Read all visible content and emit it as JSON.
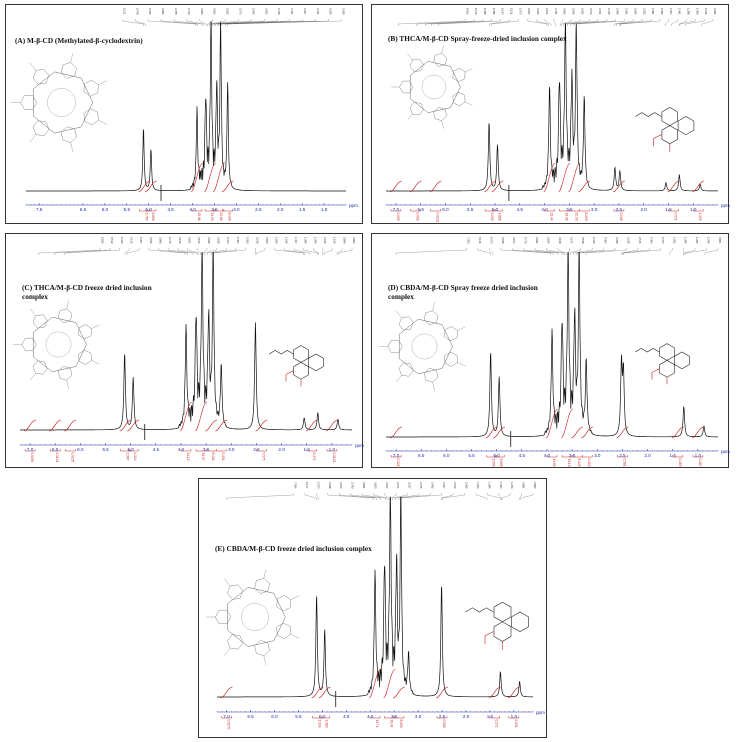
{
  "chart_data": [
    {
      "type": "line",
      "title": "(A) M-β-CD (Methylated-β-cyclodextrin)",
      "xlabel": "ppm",
      "x_ticks": [
        "7.5",
        "6.5",
        "6.0",
        "5.5",
        "5.0",
        "4.5",
        "4.0",
        "3.5",
        "3.0",
        "2.5",
        "2.0",
        "1.5",
        "1.0"
      ],
      "xlim": [
        0.5,
        7.8
      ],
      "structures": [
        "M-β-CD"
      ],
      "peak_list": [
        "5.121",
        "5.078",
        "3.925",
        "3.880",
        "3.785",
        "3.740",
        "3.684",
        "3.652",
        "3.622",
        "3.575",
        "3.540",
        "3.502",
        "3.478",
        "3.421",
        "3.397",
        "3.341",
        "3.254",
        "3.208"
      ],
      "integrals": [
        "3.700",
        "3.896",
        "13.86",
        "31.03",
        "22.66",
        "8.106"
      ],
      "integral_ppm": [
        5.1,
        4.95,
        3.9,
        3.6,
        3.4,
        3.2
      ],
      "peaks": [
        {
          "ppm": 5.12,
          "h": 0.38
        },
        {
          "ppm": 4.95,
          "h": 0.25
        },
        {
          "ppm": 3.9,
          "h": 0.46
        },
        {
          "ppm": 3.7,
          "h": 0.5
        },
        {
          "ppm": 3.58,
          "h": 0.99
        },
        {
          "ppm": 3.45,
          "h": 0.56
        },
        {
          "ppm": 3.36,
          "h": 0.96
        },
        {
          "ppm": 3.2,
          "h": 0.62
        }
      ],
      "solvent_ppm": 4.72
    },
    {
      "type": "line",
      "title": "(B)  THCA/M-β-CD  Spray-freeze-dried inclusion complex",
      "xlabel": "ppm",
      "x_ticks": [
        "7.0",
        "6.5",
        "6.0",
        "5.5",
        "5.0",
        "4.5",
        "4.0",
        "3.5",
        "3.0",
        "2.5",
        "2.0",
        "1.5",
        "1.0"
      ],
      "xlim": [
        0.5,
        7.2
      ],
      "structures": [
        "M-β-CD",
        "THCA"
      ],
      "peak_list": [
        "6.952",
        "6.579",
        "6.408",
        "6.286",
        "6.147",
        "5.116",
        "5.073",
        "3.951",
        "3.924",
        "3.871",
        "3.781",
        "3.682",
        "3.656",
        "3.621",
        "3.574",
        "3.541",
        "3.478",
        "3.409",
        "3.361",
        "2.593",
        "2.552",
        "2.481",
        "2.463",
        "1.567",
        "1.441",
        "1.288",
        "1.269",
        "1.159",
        "0.826"
      ],
      "integrals": [
        "0.008",
        "0.008",
        "0.0221",
        "3.233",
        "3.666",
        "13.44",
        "33.46",
        "32.03",
        "8.159",
        "0.548",
        "0.571",
        "1.159"
      ],
      "integral_ppm": [
        7.0,
        6.6,
        6.2,
        5.1,
        4.95,
        3.9,
        3.6,
        3.4,
        3.2,
        2.5,
        1.4,
        0.9
      ],
      "peaks": [
        {
          "ppm": 5.12,
          "h": 0.42
        },
        {
          "ppm": 4.95,
          "h": 0.28
        },
        {
          "ppm": 3.9,
          "h": 0.6
        },
        {
          "ppm": 3.7,
          "h": 0.62
        },
        {
          "ppm": 3.58,
          "h": 0.99
        },
        {
          "ppm": 3.45,
          "h": 0.62
        },
        {
          "ppm": 3.36,
          "h": 0.97
        },
        {
          "ppm": 3.2,
          "h": 0.55
        },
        {
          "ppm": 2.58,
          "h": 0.14
        },
        {
          "ppm": 2.48,
          "h": 0.12
        },
        {
          "ppm": 1.55,
          "h": 0.05
        },
        {
          "ppm": 1.28,
          "h": 0.1
        },
        {
          "ppm": 0.86,
          "h": 0.04
        }
      ],
      "solvent_ppm": 4.72
    },
    {
      "type": "line",
      "title": "(C) THCA/M-β-CD freeze dried inclusion complex",
      "xlabel": "ppm",
      "x_ticks": [
        "7.0",
        "6.5",
        "6.0",
        "5.5",
        "5.0",
        "4.5",
        "4.0",
        "3.5",
        "3.0",
        "2.5",
        "2.0",
        "1.5",
        "1.0"
      ],
      "xlim": [
        0.6,
        7.2
      ],
      "structures": [
        "M-β-CD",
        "THCA"
      ],
      "peak_list": [
        "6.835",
        "6.512",
        "6.310",
        "5.110",
        "5.067",
        "3.920",
        "3.866",
        "3.776",
        "3.678",
        "3.651",
        "3.614",
        "3.566",
        "3.536",
        "3.473",
        "3.402",
        "3.355",
        "2.519",
        "2.500",
        "1.565",
        "1.542",
        "1.437",
        "1.284",
        "1.264",
        "1.183",
        "1.156",
        "0.899",
        "0.862"
      ],
      "integrals": [
        "0.0095",
        "0.0121",
        "0.0155",
        "2.987",
        "4.124",
        "14.15",
        "33.07",
        "8.131",
        "0.151",
        "0.575",
        "0.471",
        "0.0121"
      ],
      "integral_ppm": [
        7.0,
        6.5,
        6.2,
        5.1,
        4.95,
        3.9,
        3.6,
        3.4,
        3.2,
        2.4,
        1.4,
        1.0
      ],
      "peaks": [
        {
          "ppm": 5.12,
          "h": 0.44
        },
        {
          "ppm": 4.95,
          "h": 0.3
        },
        {
          "ppm": 3.9,
          "h": 0.56
        },
        {
          "ppm": 3.7,
          "h": 0.6
        },
        {
          "ppm": 3.58,
          "h": 0.99
        },
        {
          "ppm": 3.45,
          "h": 0.58
        },
        {
          "ppm": 3.36,
          "h": 0.97
        },
        {
          "ppm": 3.2,
          "h": 0.35
        },
        {
          "ppm": 2.52,
          "h": 0.62
        },
        {
          "ppm": 1.55,
          "h": 0.07
        },
        {
          "ppm": 1.28,
          "h": 0.1
        },
        {
          "ppm": 0.88,
          "h": 0.06
        }
      ],
      "solvent_ppm": 4.72
    },
    {
      "type": "line",
      "title": "(D) CBDA/M-β-CD Spray freeze dried inclusion complex",
      "xlabel": "ppm",
      "x_ticks": [
        "7.0",
        "6.5",
        "6.0",
        "5.5",
        "5.0",
        "4.5",
        "4.0",
        "3.5",
        "3.0",
        "2.5",
        "2.0",
        "1.5",
        "1.0"
      ],
      "xlim": [
        0.6,
        7.2
      ],
      "structures": [
        "M-β-CD",
        "CBDA"
      ],
      "peak_list": [
        "7.002",
        "5.118",
        "5.073",
        "3.928",
        "3.874",
        "3.779",
        "3.681",
        "3.654",
        "3.618",
        "3.571",
        "3.538",
        "3.476",
        "3.405",
        "3.358",
        "3.228",
        "2.515",
        "2.493",
        "2.474",
        "1.562",
        "1.284",
        "1.265",
        "1.245",
        "0.861"
      ],
      "integrals": [
        "0.0217",
        "3.004",
        "3.896",
        "13.85",
        "33.13",
        "8.149",
        "0.152",
        "0.581",
        "0.169",
        "0.187"
      ],
      "integral_ppm": [
        7.0,
        5.1,
        4.95,
        3.9,
        3.6,
        3.4,
        3.2,
        2.5,
        1.4,
        1.0
      ],
      "peaks": [
        {
          "ppm": 5.12,
          "h": 0.47
        },
        {
          "ppm": 4.95,
          "h": 0.33
        },
        {
          "ppm": 3.9,
          "h": 0.55
        },
        {
          "ppm": 3.7,
          "h": 0.58
        },
        {
          "ppm": 3.58,
          "h": 0.99
        },
        {
          "ppm": 3.45,
          "h": 0.6
        },
        {
          "ppm": 3.36,
          "h": 0.97
        },
        {
          "ppm": 3.22,
          "h": 0.4
        },
        {
          "ppm": 2.52,
          "h": 0.4
        },
        {
          "ppm": 2.48,
          "h": 0.35
        },
        {
          "ppm": 1.28,
          "h": 0.17
        },
        {
          "ppm": 0.88,
          "h": 0.06
        }
      ],
      "solvent_ppm": 4.72
    },
    {
      "type": "line",
      "title": "(E)  CBDA/M-β-CD  freeze dried inclusion complex",
      "xlabel": "ppm",
      "x_ticks": [
        "7.0",
        "6.5",
        "6.0",
        "5.5",
        "5.0",
        "4.5",
        "4.0",
        "3.5",
        "3.0",
        "2.5",
        "2.0",
        "1.5",
        "1.0"
      ],
      "xlim": [
        0.6,
        7.2
      ],
      "structures": [
        "M-β-CD",
        "CBDA"
      ],
      "peak_list": [
        "7.004",
        "5.117",
        "5.073",
        "3.928",
        "3.874",
        "3.780",
        "3.681",
        "3.653",
        "3.617",
        "3.571",
        "3.537",
        "3.475",
        "3.405",
        "3.357",
        "2.514",
        "2.495",
        "1.563",
        "1.284",
        "1.263",
        "1.244",
        "0.881",
        "0.862"
      ],
      "integrals": [
        "0.0270",
        "3.124",
        "3.983",
        "13.71",
        "33.41",
        "8.158",
        "0.566",
        "0.271",
        "0.201"
      ],
      "integral_ppm": [
        7.0,
        5.1,
        4.95,
        3.9,
        3.6,
        3.4,
        2.5,
        1.4,
        1.0
      ],
      "peaks": [
        {
          "ppm": 5.12,
          "h": 0.52
        },
        {
          "ppm": 4.95,
          "h": 0.34
        },
        {
          "ppm": 3.9,
          "h": 0.6
        },
        {
          "ppm": 3.7,
          "h": 0.62
        },
        {
          "ppm": 3.58,
          "h": 0.99
        },
        {
          "ppm": 3.45,
          "h": 0.62
        },
        {
          "ppm": 3.36,
          "h": 0.97
        },
        {
          "ppm": 3.2,
          "h": 0.2
        },
        {
          "ppm": 2.51,
          "h": 0.58
        },
        {
          "ppm": 1.28,
          "h": 0.13
        },
        {
          "ppm": 0.88,
          "h": 0.08
        }
      ],
      "solvent_ppm": 4.72
    }
  ]
}
